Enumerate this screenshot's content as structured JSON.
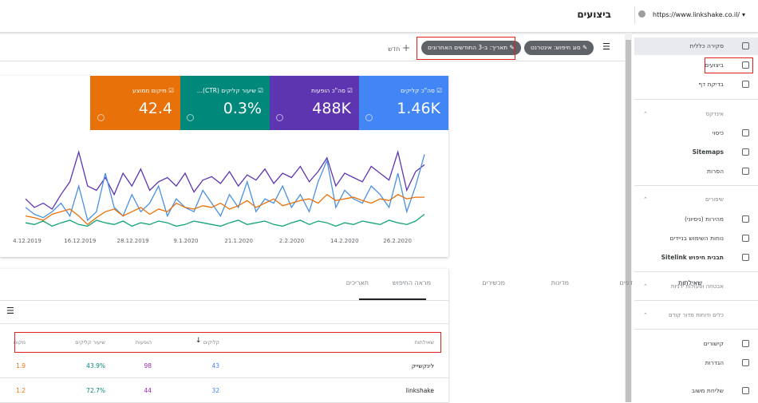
{
  "header": {
    "title": "ביצועים",
    "url": "https://www.linkshake.co.il/"
  },
  "toolbar": {
    "search_type": "סוג חיפוש: אינטרנט",
    "date": "תאריך: ב-3 החודשים האחרונים",
    "new": "חדש"
  },
  "metrics": [
    {
      "label": "סה\"כ קליקים",
      "value": "1.46K"
    },
    {
      "label": "סה\"כ הופעות",
      "value": "488K"
    },
    {
      "label": "שיעור קליקים (CTR)...",
      "value": "0.3%"
    },
    {
      "label": "מיקום ממוצע",
      "value": "42.4"
    }
  ],
  "chart_data": {
    "type": "line",
    "x_labels": [
      "4.12.2019",
      "16.12.2019",
      "28.12.2019",
      "9.1.2020",
      "21.1.2020",
      "2.2.2020",
      "14.2.2020",
      "26.2.2020"
    ],
    "ylim": [
      0,
      100
    ],
    "series": [
      {
        "color": "#5e35b1",
        "values": [
          40,
          30,
          35,
          28,
          45,
          60,
          95,
          55,
          50,
          65,
          45,
          70,
          55,
          75,
          50,
          60,
          65,
          55,
          70,
          48,
          62,
          66,
          58,
          72,
          55,
          68,
          62,
          75,
          58,
          70,
          65,
          78,
          60,
          72,
          88,
          55,
          70,
          65,
          60,
          78,
          70,
          62,
          95,
          50,
          72,
          80
        ]
      },
      {
        "color": "#4a90e2",
        "values": [
          30,
          22,
          18,
          25,
          35,
          20,
          55,
          15,
          25,
          70,
          30,
          20,
          45,
          25,
          35,
          55,
          20,
          40,
          30,
          25,
          50,
          35,
          20,
          45,
          30,
          60,
          25,
          40,
          35,
          55,
          30,
          45,
          25,
          60,
          85,
          30,
          50,
          40,
          35,
          55,
          45,
          30,
          70,
          25,
          55,
          92
        ]
      },
      {
        "color": "#e8710a",
        "values": [
          20,
          18,
          15,
          22,
          25,
          28,
          20,
          10,
          18,
          25,
          28,
          20,
          25,
          30,
          22,
          28,
          25,
          35,
          30,
          28,
          32,
          30,
          35,
          28,
          32,
          38,
          30,
          35,
          40,
          32,
          35,
          38,
          40,
          35,
          45,
          38,
          40,
          42,
          38,
          35,
          40,
          38,
          45,
          40,
          42,
          42
        ]
      },
      {
        "color": "#12a37a",
        "values": [
          12,
          10,
          14,
          8,
          12,
          15,
          10,
          8,
          15,
          12,
          10,
          14,
          8,
          12,
          10,
          14,
          12,
          8,
          10,
          14,
          12,
          10,
          8,
          12,
          15,
          10,
          12,
          14,
          10,
          8,
          12,
          15,
          10,
          14,
          12,
          8,
          12,
          10,
          14,
          12,
          10,
          15,
          12,
          10,
          14,
          22
        ]
      }
    ]
  },
  "tabs": [
    "שאילתות",
    "דפים",
    "מדינות",
    "מכשירים",
    "מראה החיפוש",
    "תאריכים"
  ],
  "table": {
    "columns": [
      "שאילתות",
      "קליקים",
      "הופעות",
      "שיעור קליקים",
      "מקום"
    ],
    "rows": [
      [
        "לינקשייק",
        "43",
        "98",
        "43.9%",
        "1.9"
      ],
      [
        "linkshake",
        "32",
        "44",
        "72.7%",
        "1.2"
      ]
    ]
  },
  "sidebar": {
    "items": [
      "סקירה כללית",
      "ביצועים",
      "בדיקת דף"
    ],
    "index_header": "אינדקס",
    "index_items": [
      "כיסוי",
      "Sitemaps",
      "הסרות"
    ],
    "enh_header": "שיפורים",
    "enh_items": [
      "מהירות (ניסיוני)",
      "נוחות השימוש בניידים",
      "תבנית חיפוש Sitelink"
    ],
    "security": "אבטחה ופעולות ידניות",
    "legacy": "כלים ודוחות מדור קודם",
    "bottom_items": [
      "קישורים",
      "הגדרות",
      "שליחת משוב"
    ]
  }
}
